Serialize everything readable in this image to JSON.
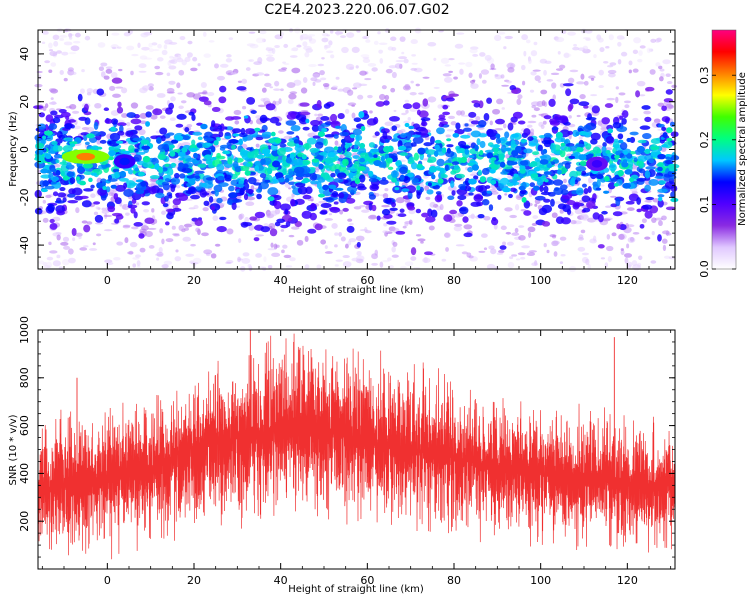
{
  "chart_data": [
    {
      "type": "heatmap",
      "title": "C2E4.2023.220.06.07.G02",
      "xlabel": "Height of straight line (km)",
      "ylabel": "Frequency (Hz)",
      "xlim": [
        -16,
        131
      ],
      "ylim": [
        -50,
        50
      ],
      "x_ticks": [
        0,
        20,
        40,
        60,
        80,
        100,
        120
      ],
      "y_ticks": [
        -40,
        -20,
        0,
        20,
        40
      ],
      "colorbar": {
        "label": "Normalized spectral amplitude",
        "range": [
          0.0,
          0.37
        ],
        "ticks": [
          0.0,
          0.1,
          0.2,
          0.3
        ],
        "colormap": "rainbow (white → violet → blue → cyan → green → yellow → red → magenta)",
        "colors": [
          "#ffffff",
          "#e0c8ff",
          "#8a2be2",
          "#5000ff",
          "#0000ff",
          "#00c8ff",
          "#00ff80",
          "#40ff00",
          "#ffff00",
          "#ff8000",
          "#ff0000",
          "#ff0080"
        ]
      },
      "features": {
        "energy_band_hz": [
          -30,
          20
        ],
        "hot_spots": [
          {
            "x": -5,
            "y": -3,
            "value": 0.33
          },
          {
            "x": 4,
            "y": -5,
            "value": 0.15
          },
          {
            "x": 113,
            "y": -6,
            "value": 0.12
          }
        ]
      }
    },
    {
      "type": "line",
      "xlabel": "Height of straight line (km)",
      "ylabel": "SNR (10 * v/v)",
      "xlim": [
        -16,
        131
      ],
      "ylim": [
        0,
        1000
      ],
      "x_ticks": [
        0,
        20,
        40,
        60,
        80,
        100,
        120
      ],
      "y_ticks": [
        200,
        400,
        600,
        800,
        1000
      ],
      "color": "#f03030",
      "envelope": {
        "x": [
          -16,
          -5,
          10,
          20,
          33,
          45,
          60,
          75,
          90,
          105,
          120,
          131
        ],
        "median": [
          320,
          360,
          420,
          520,
          560,
          600,
          530,
          480,
          430,
          390,
          360,
          350
        ],
        "upper": [
          620,
          650,
          700,
          780,
          900,
          950,
          900,
          800,
          720,
          650,
          620,
          580
        ],
        "lower": [
          60,
          80,
          120,
          160,
          220,
          260,
          220,
          180,
          150,
          120,
          100,
          80
        ]
      },
      "peaks": [
        {
          "x": 33,
          "y": 1000
        },
        {
          "x": 43,
          "y": 950
        },
        {
          "x": 117,
          "y": 970
        },
        {
          "x": -7,
          "y": 800
        }
      ]
    }
  ]
}
